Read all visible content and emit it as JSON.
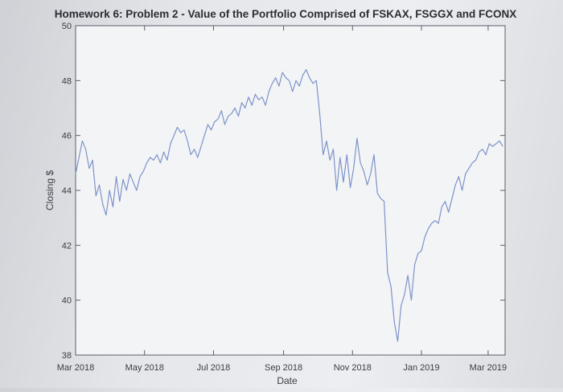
{
  "chart_data": {
    "type": "line",
    "title": "Homework 6: Problem 2 - Value of the Portfolio Comprised of FSKAX, FSGGX and FCONX",
    "xlabel": "Date",
    "ylabel": "Closing $",
    "ylim": [
      38,
      50
    ],
    "xlim": [
      "2018-03-01",
      "2019-03-16"
    ],
    "yticks": [
      38,
      40,
      42,
      44,
      46,
      48,
      50
    ],
    "xticks": [
      {
        "date": "2018-03-01",
        "label": "Mar 2018"
      },
      {
        "date": "2018-05-01",
        "label": "May 2018"
      },
      {
        "date": "2018-07-01",
        "label": "Jul 2018"
      },
      {
        "date": "2018-09-01",
        "label": "Sep 2018"
      },
      {
        "date": "2018-11-01",
        "label": "Nov 2018"
      },
      {
        "date": "2019-01-01",
        "label": "Jan 2019"
      },
      {
        "date": "2019-03-01",
        "label": "Mar 2019"
      }
    ],
    "grid": false,
    "series": [
      {
        "color": "#7d93c9",
        "x": [
          "2018-03-01",
          "2018-03-04",
          "2018-03-07",
          "2018-03-10",
          "2018-03-13",
          "2018-03-16",
          "2018-03-19",
          "2018-03-22",
          "2018-03-25",
          "2018-03-28",
          "2018-03-31",
          "2018-04-03",
          "2018-04-06",
          "2018-04-09",
          "2018-04-12",
          "2018-04-15",
          "2018-04-18",
          "2018-04-21",
          "2018-04-24",
          "2018-04-27",
          "2018-04-30",
          "2018-05-03",
          "2018-05-06",
          "2018-05-09",
          "2018-05-12",
          "2018-05-15",
          "2018-05-18",
          "2018-05-21",
          "2018-05-24",
          "2018-05-27",
          "2018-05-30",
          "2018-06-02",
          "2018-06-05",
          "2018-06-08",
          "2018-06-11",
          "2018-06-14",
          "2018-06-17",
          "2018-06-20",
          "2018-06-23",
          "2018-06-26",
          "2018-06-29",
          "2018-07-02",
          "2018-07-05",
          "2018-07-08",
          "2018-07-11",
          "2018-07-14",
          "2018-07-17",
          "2018-07-20",
          "2018-07-23",
          "2018-07-26",
          "2018-07-29",
          "2018-08-01",
          "2018-08-04",
          "2018-08-07",
          "2018-08-10",
          "2018-08-13",
          "2018-08-16",
          "2018-08-19",
          "2018-08-22",
          "2018-08-25",
          "2018-08-28",
          "2018-08-31",
          "2018-09-03",
          "2018-09-06",
          "2018-09-09",
          "2018-09-12",
          "2018-09-15",
          "2018-09-18",
          "2018-09-21",
          "2018-09-24",
          "2018-09-27",
          "2018-09-30",
          "2018-10-03",
          "2018-10-06",
          "2018-10-09",
          "2018-10-12",
          "2018-10-15",
          "2018-10-18",
          "2018-10-21",
          "2018-10-24",
          "2018-10-27",
          "2018-10-30",
          "2018-11-02",
          "2018-11-05",
          "2018-11-08",
          "2018-11-11",
          "2018-11-14",
          "2018-11-17",
          "2018-11-20",
          "2018-11-23",
          "2018-11-26",
          "2018-11-29",
          "2018-12-02",
          "2018-12-05",
          "2018-12-08",
          "2018-12-11",
          "2018-12-14",
          "2018-12-17",
          "2018-12-20",
          "2018-12-23",
          "2018-12-26",
          "2018-12-29",
          "2019-01-01",
          "2019-01-04",
          "2019-01-07",
          "2019-01-10",
          "2019-01-13",
          "2019-01-16",
          "2019-01-19",
          "2019-01-22",
          "2019-01-25",
          "2019-01-28",
          "2019-01-31",
          "2019-02-03",
          "2019-02-06",
          "2019-02-09",
          "2019-02-12",
          "2019-02-15",
          "2019-02-18",
          "2019-02-21",
          "2019-02-24",
          "2019-02-27",
          "2019-03-02",
          "2019-03-05",
          "2019-03-08",
          "2019-03-11",
          "2019-03-14"
        ],
        "values": [
          44.6,
          45.2,
          45.8,
          45.5,
          44.8,
          45.1,
          43.8,
          44.2,
          43.5,
          43.1,
          44.0,
          43.4,
          44.5,
          43.6,
          44.4,
          44.0,
          44.6,
          44.3,
          44.0,
          44.5,
          44.7,
          45.0,
          45.2,
          45.1,
          45.3,
          45.0,
          45.4,
          45.1,
          45.7,
          46.0,
          46.3,
          46.1,
          46.2,
          45.8,
          45.3,
          45.5,
          45.2,
          45.6,
          46.0,
          46.4,
          46.2,
          46.5,
          46.6,
          46.9,
          46.4,
          46.7,
          46.8,
          47.0,
          46.7,
          47.2,
          47.0,
          47.4,
          47.1,
          47.5,
          47.3,
          47.4,
          47.1,
          47.6,
          47.9,
          48.1,
          47.8,
          48.3,
          48.1,
          48.0,
          47.6,
          48.0,
          47.8,
          48.2,
          48.4,
          48.1,
          47.9,
          48.0,
          46.8,
          45.3,
          45.8,
          45.1,
          45.5,
          44.0,
          45.2,
          44.3,
          45.3,
          44.1,
          44.8,
          45.9,
          45.0,
          44.7,
          44.2,
          44.6,
          45.3,
          43.9,
          43.7,
          43.6,
          41.0,
          40.5,
          39.2,
          38.5,
          39.8,
          40.2,
          40.9,
          40.0,
          41.3,
          41.7,
          41.8,
          42.3,
          42.6,
          42.8,
          42.9,
          42.8,
          43.4,
          43.6,
          43.2,
          43.7,
          44.2,
          44.5,
          44.0,
          44.6,
          44.8,
          45.0,
          45.1,
          45.4,
          45.5,
          45.3,
          45.7,
          45.6,
          45.7,
          45.8,
          45.6
        ]
      }
    ],
    "annotations": []
  }
}
